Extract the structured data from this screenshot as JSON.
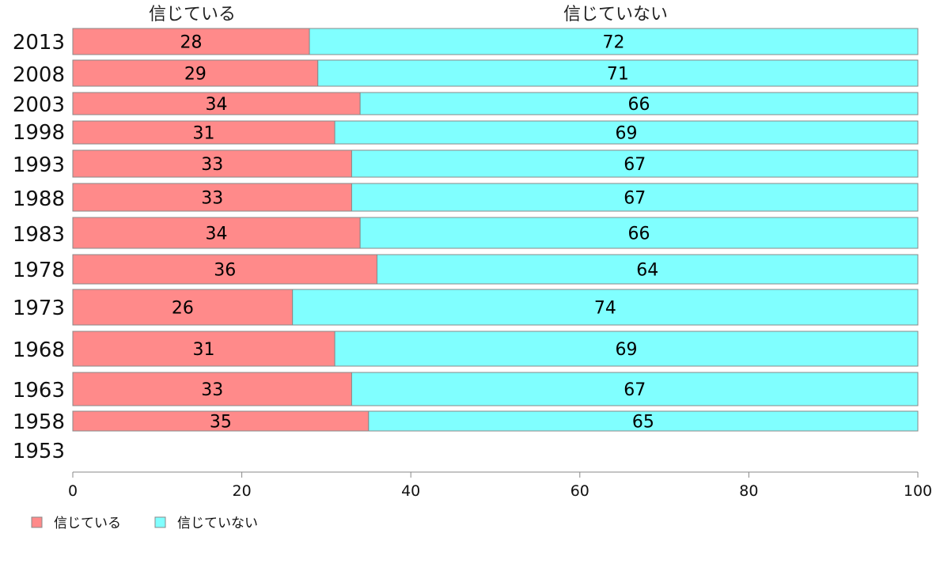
{
  "chart_data": {
    "type": "bar",
    "orientation": "horizontal",
    "stacked": true,
    "categories": [
      "2013",
      "2008",
      "2003",
      "1998",
      "1993",
      "1988",
      "1983",
      "1978",
      "1973",
      "1968",
      "1963",
      "1958",
      "1953"
    ],
    "series": [
      {
        "name": "信じている",
        "color": "#ff8a8a",
        "values": [
          28,
          29,
          34,
          31,
          33,
          33,
          34,
          36,
          26,
          31,
          33,
          35,
          null
        ]
      },
      {
        "name": "信じていない",
        "color": "#80ffff",
        "values": [
          72,
          71,
          66,
          69,
          67,
          67,
          66,
          64,
          74,
          69,
          67,
          65,
          null
        ]
      }
    ],
    "column_headers": [
      "信じている",
      "信じていない"
    ],
    "xlim": [
      0,
      100
    ],
    "xticks": [
      0,
      20,
      40,
      60,
      80,
      100
    ],
    "grid": false,
    "legend_position": "bottom-left",
    "data_labels": true
  }
}
